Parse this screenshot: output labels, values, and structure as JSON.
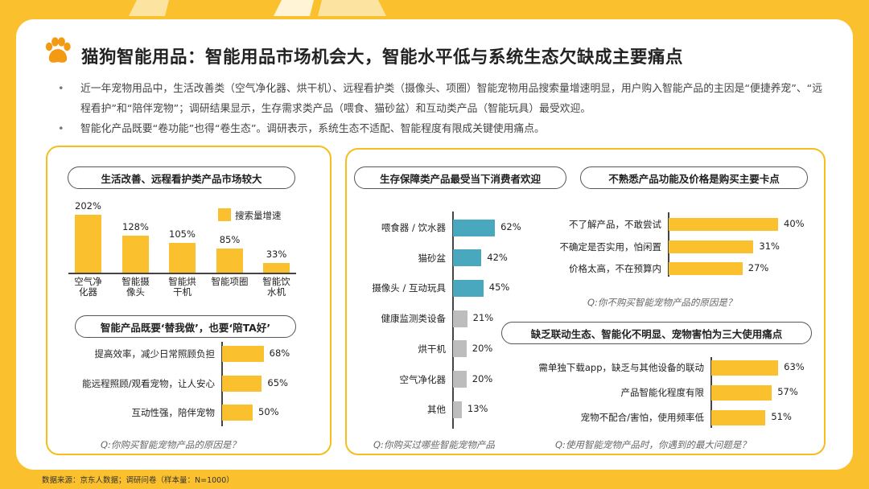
{
  "header": {
    "title": "猫狗智能用品：智能用品市场机会大，智能水平低与系统生态欠缺成主要痛点"
  },
  "bullets": [
    "近一年宠物用品中，生活改善类（空气净化器、烘干机）、远程看护类（摄像头、项圈）智能宠物用品搜索量增速明显，用户购入智能产品的主因是“便捷养宠”、“远程看护”和“陪伴宠物”；调研结果显示，生存需求类产品（喂食、猫砂盆）和互动类产品（智能玩具）最受欢迎。",
    "智能化产品既要“卷功能”也得“卷生态”。调研表示，系统生态不适配、智能程度有限成关键使用痛点。"
  ],
  "footer": "数据来源：京东人数据；调研问卷（样本量：N=1000）",
  "colors": {
    "yellow": "#fbc02d",
    "teal": "#4aa8be",
    "gray": "#bdbdbd"
  },
  "chart_data": [
    {
      "id": "search-growth",
      "type": "bar",
      "title": "生活改善、远程看护类产品市场较大",
      "legend": "搜索量增速",
      "categories": [
        "空气净\n化器",
        "智能摄\n像头",
        "智能烘\n干机",
        "智能项圈",
        "智能饮\n水机"
      ],
      "values": [
        202,
        128,
        105,
        85,
        33
      ],
      "value_labels": [
        "202%",
        "128%",
        "105%",
        "85%",
        "33%"
      ],
      "ylim": [
        0,
        202
      ]
    },
    {
      "id": "purchase-reasons",
      "type": "bar",
      "orientation": "horizontal",
      "title": "智能产品既要‘替我做’，也要‘陪TA好’",
      "categories": [
        "提高效率，减少日常照顾负担",
        "能远程照顾/观看宠物，让人安心",
        "互动性强，陪伴宠物"
      ],
      "values": [
        68,
        65,
        50
      ],
      "value_labels": [
        "68%",
        "65%",
        "50%"
      ],
      "question": "Q:你购买智能宠物产品的原因是？"
    },
    {
      "id": "products-bought",
      "type": "bar",
      "orientation": "horizontal",
      "title": "生存保障类产品最受当下消费者欢迎",
      "categories": [
        "喂食器 / 饮水器",
        "猫砂盆",
        "摄像头 / 互动玩具",
        "健康监测类设备",
        "烘干机",
        "空气净化器",
        "其他"
      ],
      "values": [
        62,
        42,
        45,
        21,
        20,
        20,
        13
      ],
      "value_labels": [
        "62%",
        "42%",
        "45%",
        "21%",
        "20%",
        "20%",
        "13%"
      ],
      "highlight": [
        true,
        true,
        true,
        false,
        false,
        false,
        false
      ],
      "question": "Q:你购买过哪些智能宠物产品"
    },
    {
      "id": "not-buy-reasons",
      "type": "bar",
      "orientation": "horizontal",
      "title": "不熟悉产品功能及价格是购买主要卡点",
      "categories": [
        "不了解产品，不敢尝试",
        "不确定是否实用，怕闲置",
        "价格太高，不在预算内"
      ],
      "values": [
        40,
        31,
        27
      ],
      "value_labels": [
        "40%",
        "31%",
        "27%"
      ],
      "question": "Q:你不购买智能宠物产品的原因是？"
    },
    {
      "id": "usage-pain",
      "type": "bar",
      "orientation": "horizontal",
      "title": "缺乏联动生态、智能化不明显、宠物害怕为三大使用痛点",
      "categories": [
        "需单独下载app，缺乏与其他设备的联动",
        "产品智能化程度有限",
        "宠物不配合/害怕，使用频率低"
      ],
      "values": [
        63,
        57,
        51
      ],
      "value_labels": [
        "63%",
        "57%",
        "51%"
      ],
      "question": "Q:使用智能宠物产品时，你遇到的最大问题是？"
    }
  ]
}
